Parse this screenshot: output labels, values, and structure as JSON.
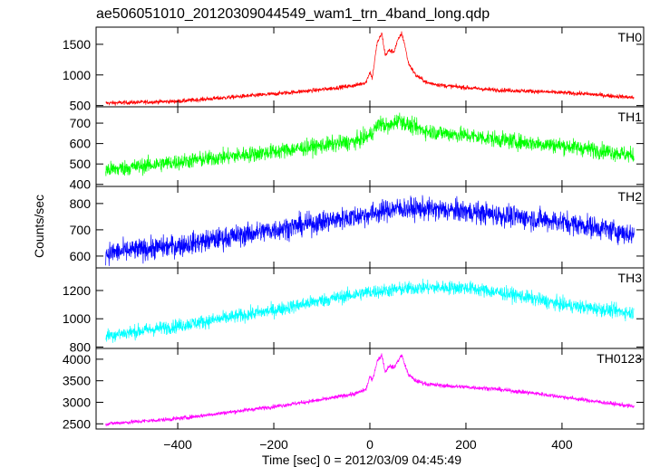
{
  "chart_data": {
    "type": "line",
    "title": "ae506051010_20120309044549_wam1_trn_4band_long.qdp",
    "xlabel": "Time [sec] 0 = 2012/03/09 04:45:49",
    "ylabel": "Counts/sec",
    "xlim": [
      -570,
      570
    ],
    "x_ticks": [
      -400,
      -200,
      0,
      200,
      400
    ],
    "x_tick_labels": [
      "−400",
      "−200",
      "0",
      "200",
      "400"
    ],
    "grid": false,
    "panels": [
      {
        "name": "TH0",
        "color": "#ff0000",
        "ylim": [
          480,
          1780
        ],
        "y_ticks": [
          500,
          1000,
          1500
        ],
        "noise": 25,
        "x": [
          -550,
          -400,
          -200,
          -100,
          -30,
          -8,
          0,
          5,
          15,
          25,
          32,
          40,
          50,
          58,
          66,
          72,
          80,
          95,
          120,
          160,
          250,
          350,
          450,
          550
        ],
        "y": [
          540,
          570,
          690,
          760,
          830,
          880,
          1050,
          950,
          1520,
          1680,
          1320,
          1400,
          1380,
          1560,
          1680,
          1520,
          1200,
          1000,
          870,
          820,
          760,
          730,
          690,
          630
        ]
      },
      {
        "name": "TH1",
        "color": "#00ff00",
        "ylim": [
          390,
          780
        ],
        "y_ticks": [
          400,
          500,
          600,
          700
        ],
        "noise": 28,
        "x": [
          -550,
          -400,
          -200,
          -100,
          -30,
          0,
          20,
          40,
          60,
          80,
          120,
          200,
          300,
          400,
          500,
          550
        ],
        "y": [
          470,
          510,
          560,
          590,
          610,
          640,
          700,
          680,
          720,
          690,
          660,
          640,
          610,
          590,
          560,
          540
        ]
      },
      {
        "name": "TH2",
        "color": "#0000ff",
        "ylim": [
          555,
          865
        ],
        "y_ticks": [
          600,
          700,
          800
        ],
        "noise": 30,
        "x": [
          -550,
          -400,
          -200,
          -100,
          0,
          50,
          100,
          200,
          300,
          400,
          500,
          550
        ],
        "y": [
          610,
          640,
          700,
          730,
          760,
          780,
          780,
          770,
          750,
          730,
          700,
          680
        ]
      },
      {
        "name": "TH3",
        "color": "#00ffff",
        "ylim": [
          790,
          1360
        ],
        "y_ticks": [
          800,
          1000,
          1200
        ],
        "noise": 35,
        "x": [
          -550,
          -400,
          -200,
          -100,
          0,
          100,
          200,
          300,
          400,
          500,
          550
        ],
        "y": [
          880,
          950,
          1060,
          1130,
          1190,
          1220,
          1220,
          1170,
          1100,
          1060,
          1040
        ]
      },
      {
        "name": "TH0123",
        "color": "#ff00ff",
        "ylim": [
          2380,
          4250
        ],
        "y_ticks": [
          2500,
          3000,
          3500,
          4000
        ],
        "noise": 35,
        "x": [
          -550,
          -400,
          -200,
          -100,
          -30,
          -8,
          0,
          5,
          15,
          25,
          32,
          40,
          50,
          58,
          66,
          72,
          80,
          95,
          120,
          160,
          250,
          350,
          450,
          550
        ],
        "y": [
          2500,
          2620,
          2900,
          3060,
          3200,
          3300,
          3600,
          3500,
          3950,
          4100,
          3700,
          3850,
          3800,
          3950,
          4100,
          3900,
          3650,
          3500,
          3420,
          3380,
          3320,
          3200,
          3050,
          2900
        ]
      }
    ]
  }
}
